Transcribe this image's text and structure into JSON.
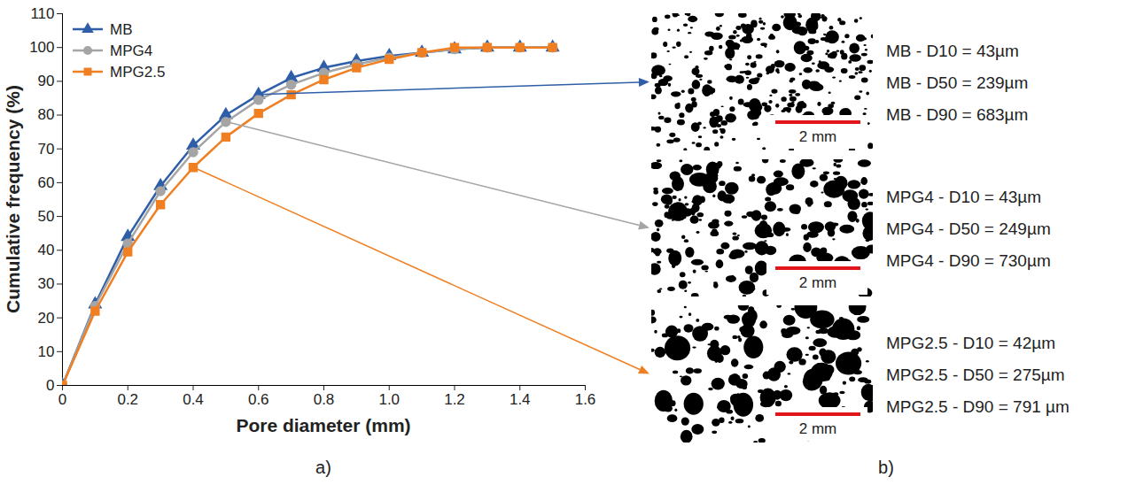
{
  "chart_data": {
    "type": "line",
    "panel_label": "a)",
    "x_label": "Pore diameter (mm)",
    "y_label": "Cumulative frequency (%)",
    "x": [
      0,
      0.1,
      0.2,
      0.3,
      0.4,
      0.5,
      0.6,
      0.7,
      0.8,
      0.9,
      1.0,
      1.1,
      1.2,
      1.3,
      1.4,
      1.5
    ],
    "series": [
      {
        "name": "MB",
        "color": "#2f5ea8",
        "marker": "triangle",
        "values": [
          0,
          24,
          44,
          59,
          71,
          80,
          86,
          91,
          94,
          96,
          97.5,
          98.5,
          99.5,
          100,
          100,
          100
        ]
      },
      {
        "name": "MPG4",
        "color": "#a5a5a5",
        "marker": "circle",
        "values": [
          0,
          23.5,
          42,
          57.5,
          69,
          78,
          84.5,
          89,
          92.5,
          95,
          97,
          98.5,
          99.5,
          100,
          100,
          100
        ]
      },
      {
        "name": "MPG2.5",
        "color": "#f07f22",
        "marker": "square",
        "values": [
          0,
          22,
          39.5,
          53.5,
          64.5,
          73.5,
          80.5,
          86,
          90.5,
          94,
          96.5,
          98.5,
          100,
          100,
          100,
          100
        ]
      }
    ],
    "xlim": [
      0,
      1.6
    ],
    "xticks": [
      0,
      0.2,
      0.4,
      0.6,
      0.8,
      {
        "value": 1,
        "label": "1.0"
      },
      1.2,
      1.4,
      1.6
    ],
    "ylim": [
      0,
      110
    ],
    "yticks": [
      0,
      10,
      20,
      30,
      40,
      50,
      60,
      70,
      80,
      90,
      100,
      110
    ],
    "grid": false,
    "legend": "top-left"
  },
  "images": {
    "panel_label": "b)",
    "items": [
      {
        "series": "MB",
        "scale_bar": "2 mm",
        "labels": [
          "MB - D10 = 43µm",
          "MB - D50 = 239µm",
          "MB - D90 = 683µm"
        ]
      },
      {
        "series": "MPG4",
        "scale_bar": "2 mm",
        "labels": [
          "MPG4 - D10 = 43µm",
          "MPG4 - D50 = 249µm",
          "MPG4 - D90 = 730µm"
        ]
      },
      {
        "series": "MPG2.5",
        "scale_bar": "2 mm",
        "labels": [
          "MPG2.5 - D10 = 42µm",
          "MPG2.5 - D50 = 275µm",
          "MPG2.5 - D90 = 791 µm"
        ]
      }
    ]
  }
}
